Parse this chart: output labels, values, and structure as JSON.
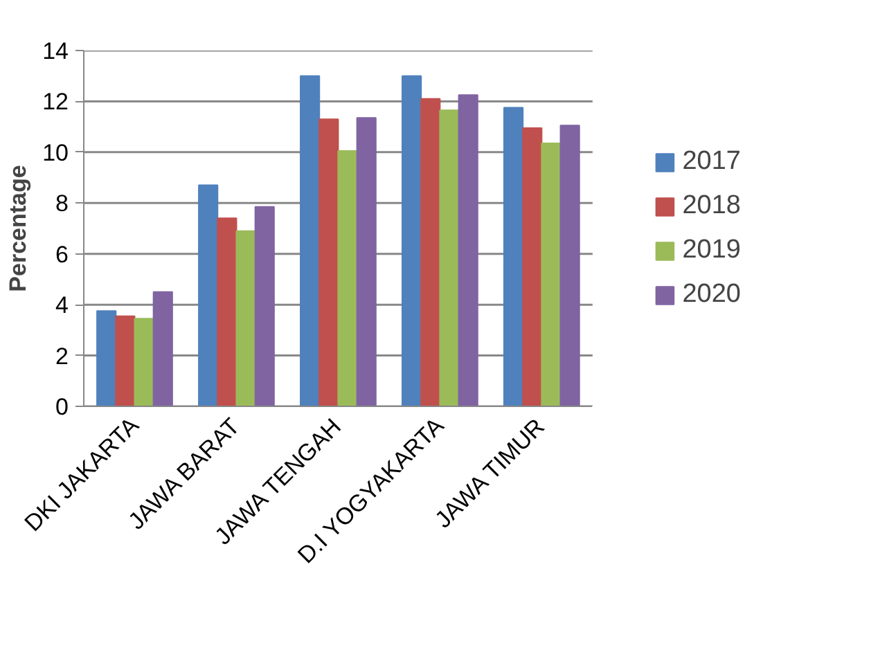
{
  "chart_data": {
    "type": "bar",
    "ylabel": "Percentage",
    "categories": [
      "DKI JAKARTA",
      "JAWA BARAT",
      "JAWA TENGAH",
      "D.I YOGYAKARTA",
      "JAWA TIMUR"
    ],
    "series": [
      {
        "name": "2017",
        "color": "#4f81bd",
        "values": [
          3.75,
          8.7,
          13.0,
          13.0,
          11.75
        ]
      },
      {
        "name": "2018",
        "color": "#c0504d",
        "values": [
          3.55,
          7.4,
          11.3,
          12.1,
          10.95
        ]
      },
      {
        "name": "2019",
        "color": "#9bbb59",
        "values": [
          3.45,
          6.9,
          10.05,
          11.65,
          10.35
        ]
      },
      {
        "name": "2020",
        "color": "#8064a2",
        "values": [
          4.5,
          7.85,
          11.35,
          12.25,
          11.05
        ]
      }
    ],
    "ylim": [
      0,
      14
    ],
    "yticks": [
      0,
      2,
      4,
      6,
      8,
      10,
      12,
      14
    ],
    "grid": "y",
    "legend": "right"
  }
}
